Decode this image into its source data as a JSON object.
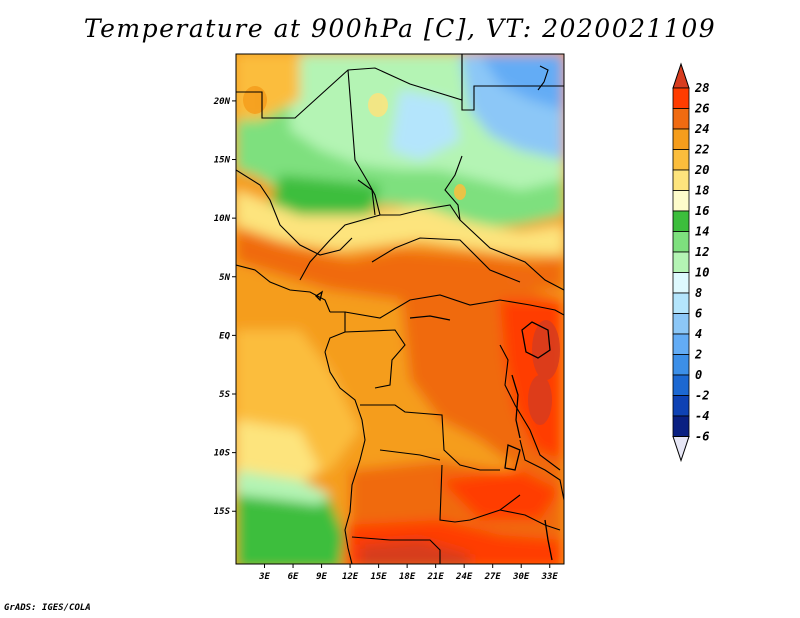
{
  "title": "Temperature at 900hPa [C], VT: 2020021109",
  "credit": "GrADS: IGES/COLA",
  "map": {
    "lon_range": [
      0,
      34.5
    ],
    "lat_range": [
      -19.5,
      24
    ],
    "lon_ticks": [
      "3E",
      "6E",
      "9E",
      "12E",
      "15E",
      "18E",
      "21E",
      "24E",
      "27E",
      "30E",
      "33E"
    ],
    "lat_ticks": [
      "20N",
      "15N",
      "10N",
      "5N",
      "EQ",
      "5S",
      "10S",
      "15S"
    ],
    "colorbar": {
      "levels": [
        "28",
        "26",
        "24",
        "22",
        "20",
        "18",
        "16",
        "14",
        "12",
        "10",
        "8",
        "6",
        "4",
        "2",
        "0",
        "-2",
        "-4",
        "-6"
      ],
      "colors": [
        "#d73c1f",
        "#ff3c00",
        "#f06b11",
        "#f59d1c",
        "#fbbd3c",
        "#fde47d",
        "#fefccb",
        "#3cbe3c",
        "#7ee07e",
        "#b4f4b4",
        "#def9fe",
        "#b4e5fc",
        "#8cc7f7",
        "#63acf5",
        "#3c8fe8",
        "#1c68d2",
        "#0e42b4",
        "#0a2082",
        "#e6e6f5"
      ]
    }
  }
}
